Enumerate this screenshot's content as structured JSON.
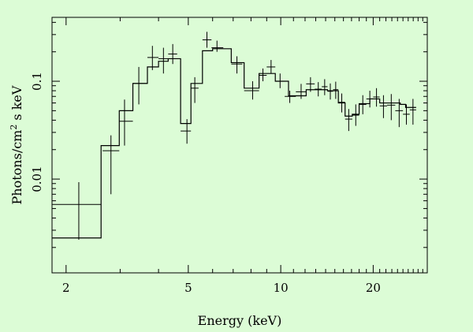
{
  "page": {
    "background": "#dcfcd6"
  },
  "chart_data": {
    "type": "line",
    "title": "",
    "xlabel": "Energy (keV)",
    "ylabel_main": "Photons/cm",
    "ylabel_sup": "2",
    "ylabel_tail": " s keV",
    "xscale": "log",
    "yscale": "log",
    "xlim": [
      1.8,
      30
    ],
    "ylim": [
      0.0011,
      0.45
    ],
    "xticks": [
      {
        "value": 2,
        "label": "2"
      },
      {
        "value": 5,
        "label": "5"
      },
      {
        "value": 10,
        "label": "10"
      },
      {
        "value": 20,
        "label": "20"
      }
    ],
    "yticks": [
      {
        "value": 0.01,
        "label": "0.01"
      },
      {
        "value": 0.1,
        "label": "0.1"
      }
    ],
    "grid": false,
    "legend": "none",
    "line_color": "#000000",
    "data_points": [
      {
        "x": 2.2,
        "xlo": 1.8,
        "xhi": 2.6,
        "y": 0.0055,
        "ylo": 0.0024,
        "yhi": 0.0093
      },
      {
        "x": 2.8,
        "xlo": 2.63,
        "xhi": 2.98,
        "y": 0.0195,
        "ylo": 0.007,
        "yhi": 0.028
      },
      {
        "x": 3.1,
        "xlo": 2.98,
        "xhi": 3.3,
        "y": 0.039,
        "ylo": 0.022,
        "yhi": 0.065
      },
      {
        "x": 3.45,
        "xlo": 3.3,
        "xhi": 3.68,
        "y": 0.095,
        "ylo": 0.058,
        "yhi": 0.14
      },
      {
        "x": 3.82,
        "xlo": 3.68,
        "xhi": 4.0,
        "y": 0.175,
        "ylo": 0.13,
        "yhi": 0.23
      },
      {
        "x": 4.15,
        "xlo": 4.0,
        "xhi": 4.3,
        "y": 0.17,
        "ylo": 0.12,
        "yhi": 0.22
      },
      {
        "x": 4.45,
        "xlo": 4.3,
        "xhi": 4.6,
        "y": 0.19,
        "ylo": 0.15,
        "yhi": 0.24
      },
      {
        "x": 4.95,
        "xlo": 4.72,
        "xhi": 5.1,
        "y": 0.031,
        "ylo": 0.023,
        "yhi": 0.041
      },
      {
        "x": 5.25,
        "xlo": 5.1,
        "xhi": 5.4,
        "y": 0.085,
        "ylo": 0.06,
        "yhi": 0.11
      },
      {
        "x": 5.75,
        "xlo": 5.56,
        "xhi": 5.95,
        "y": 0.265,
        "ylo": 0.22,
        "yhi": 0.32
      },
      {
        "x": 6.2,
        "xlo": 5.95,
        "xhi": 6.5,
        "y": 0.22,
        "ylo": 0.2,
        "yhi": 0.26
      },
      {
        "x": 7.2,
        "xlo": 6.9,
        "xhi": 7.5,
        "y": 0.15,
        "ylo": 0.12,
        "yhi": 0.18
      },
      {
        "x": 8.1,
        "xlo": 7.6,
        "xhi": 8.5,
        "y": 0.08,
        "ylo": 0.065,
        "yhi": 0.1
      },
      {
        "x": 8.75,
        "xlo": 8.5,
        "xhi": 9.0,
        "y": 0.115,
        "ylo": 0.1,
        "yhi": 0.135
      },
      {
        "x": 9.3,
        "xlo": 9.0,
        "xhi": 9.6,
        "y": 0.14,
        "ylo": 0.12,
        "yhi": 0.165
      },
      {
        "x": 9.95,
        "xlo": 9.6,
        "xhi": 10.3,
        "y": 0.1,
        "ylo": 0.085,
        "yhi": 0.12
      },
      {
        "x": 10.7,
        "xlo": 10.3,
        "xhi": 11.2,
        "y": 0.07,
        "ylo": 0.06,
        "yhi": 0.08
      },
      {
        "x": 11.65,
        "xlo": 11.2,
        "xhi": 12.1,
        "y": 0.078,
        "ylo": 0.066,
        "yhi": 0.094
      },
      {
        "x": 12.5,
        "xlo": 12.1,
        "xhi": 12.9,
        "y": 0.094,
        "ylo": 0.078,
        "yhi": 0.11
      },
      {
        "x": 13.25,
        "xlo": 12.9,
        "xhi": 13.6,
        "y": 0.083,
        "ylo": 0.07,
        "yhi": 0.098
      },
      {
        "x": 13.9,
        "xlo": 13.6,
        "xhi": 14.2,
        "y": 0.088,
        "ylo": 0.072,
        "yhi": 0.105
      },
      {
        "x": 14.5,
        "xlo": 14.2,
        "xhi": 14.8,
        "y": 0.079,
        "ylo": 0.065,
        "yhi": 0.095
      },
      {
        "x": 15.1,
        "xlo": 14.8,
        "xhi": 15.4,
        "y": 0.082,
        "ylo": 0.066,
        "yhi": 0.099
      },
      {
        "x": 15.8,
        "xlo": 15.4,
        "xhi": 16.2,
        "y": 0.061,
        "ylo": 0.048,
        "yhi": 0.075
      },
      {
        "x": 16.65,
        "xlo": 16.2,
        "xhi": 17.1,
        "y": 0.041,
        "ylo": 0.031,
        "yhi": 0.052
      },
      {
        "x": 17.55,
        "xlo": 17.1,
        "xhi": 18.0,
        "y": 0.045,
        "ylo": 0.035,
        "yhi": 0.058
      },
      {
        "x": 18.5,
        "xlo": 18.0,
        "xhi": 19.0,
        "y": 0.058,
        "ylo": 0.046,
        "yhi": 0.072
      },
      {
        "x": 19.5,
        "xlo": 19.0,
        "xhi": 20.0,
        "y": 0.066,
        "ylo": 0.054,
        "yhi": 0.08
      },
      {
        "x": 20.5,
        "xlo": 20.0,
        "xhi": 21.0,
        "y": 0.069,
        "ylo": 0.055,
        "yhi": 0.085
      },
      {
        "x": 21.6,
        "xlo": 21.0,
        "xhi": 22.2,
        "y": 0.056,
        "ylo": 0.042,
        "yhi": 0.072
      },
      {
        "x": 22.9,
        "xlo": 22.2,
        "xhi": 23.6,
        "y": 0.057,
        "ylo": 0.04,
        "yhi": 0.074
      },
      {
        "x": 24.3,
        "xlo": 23.6,
        "xhi": 25.0,
        "y": 0.05,
        "ylo": 0.034,
        "yhi": 0.066
      },
      {
        "x": 25.65,
        "xlo": 25.0,
        "xhi": 26.3,
        "y": 0.046,
        "ylo": 0.036,
        "yhi": 0.058
      },
      {
        "x": 26.95,
        "xlo": 26.3,
        "xhi": 27.6,
        "y": 0.051,
        "ylo": 0.036,
        "yhi": 0.066
      }
    ],
    "model_steps": [
      {
        "x0": 1.8,
        "x1": 2.6,
        "y": 0.0025
      },
      {
        "x0": 2.6,
        "x1": 2.98,
        "y": 0.022
      },
      {
        "x0": 2.98,
        "x1": 3.3,
        "y": 0.05
      },
      {
        "x0": 3.3,
        "x1": 3.68,
        "y": 0.095
      },
      {
        "x0": 3.68,
        "x1": 4.0,
        "y": 0.14
      },
      {
        "x0": 4.0,
        "x1": 4.3,
        "y": 0.16
      },
      {
        "x0": 4.3,
        "x1": 4.72,
        "y": 0.17
      },
      {
        "x0": 4.72,
        "x1": 5.1,
        "y": 0.037
      },
      {
        "x0": 5.1,
        "x1": 5.56,
        "y": 0.095
      },
      {
        "x0": 5.56,
        "x1": 6.0,
        "y": 0.205
      },
      {
        "x0": 6.0,
        "x1": 6.9,
        "y": 0.215
      },
      {
        "x0": 6.9,
        "x1": 7.6,
        "y": 0.155
      },
      {
        "x0": 7.6,
        "x1": 8.5,
        "y": 0.085
      },
      {
        "x0": 8.5,
        "x1": 9.6,
        "y": 0.12
      },
      {
        "x0": 9.6,
        "x1": 10.6,
        "y": 0.1
      },
      {
        "x0": 10.6,
        "x1": 12.1,
        "y": 0.071
      },
      {
        "x0": 12.1,
        "x1": 14.2,
        "y": 0.082
      },
      {
        "x0": 14.2,
        "x1": 15.4,
        "y": 0.08
      },
      {
        "x0": 15.4,
        "x1": 16.2,
        "y": 0.06
      },
      {
        "x0": 16.2,
        "x1": 17.1,
        "y": 0.044
      },
      {
        "x0": 17.1,
        "x1": 18.0,
        "y": 0.046
      },
      {
        "x0": 18.0,
        "x1": 19.5,
        "y": 0.059
      },
      {
        "x0": 19.5,
        "x1": 21.0,
        "y": 0.066
      },
      {
        "x0": 21.0,
        "x1": 24.5,
        "y": 0.06
      },
      {
        "x0": 24.5,
        "x1": 25.5,
        "y": 0.058
      },
      {
        "x0": 25.5,
        "x1": 27.6,
        "y": 0.054
      }
    ]
  }
}
